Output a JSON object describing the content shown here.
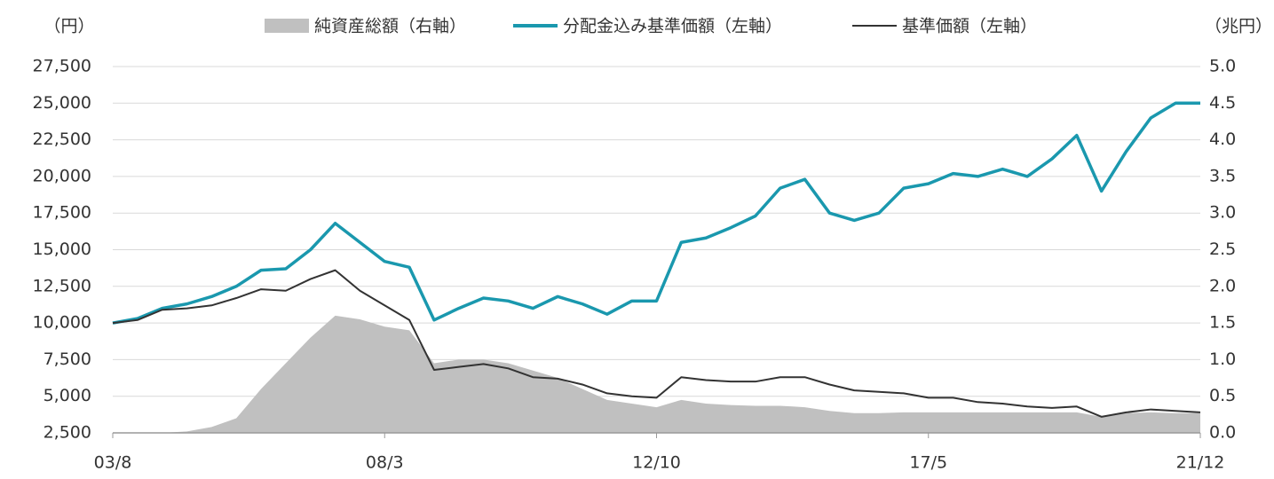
{
  "chart_data": {
    "type": "line",
    "y_unit": "（円）",
    "y2_unit": "（兆円）",
    "categories": [
      "03/8",
      null,
      null,
      null,
      null,
      null,
      null,
      null,
      null,
      null,
      null,
      "08/3",
      null,
      null,
      null,
      null,
      null,
      null,
      null,
      null,
      null,
      null,
      "12/10",
      null,
      null,
      null,
      null,
      null,
      null,
      null,
      null,
      null,
      null,
      "17/5",
      null,
      null,
      null,
      null,
      null,
      null,
      null,
      null,
      null,
      null,
      "21/12"
    ],
    "series": [
      {
        "name": "純資産総額（右軸）",
        "type": "area",
        "axis": "y2",
        "color": "#c0c0c0",
        "values": [
          0,
          0,
          0,
          0.02,
          0.08,
          0.2,
          0.6,
          0.95,
          1.3,
          1.6,
          1.55,
          1.45,
          1.4,
          0.95,
          1.0,
          1.0,
          0.95,
          0.85,
          0.75,
          0.6,
          0.45,
          0.4,
          0.35,
          0.45,
          0.4,
          0.38,
          0.37,
          0.37,
          0.35,
          0.3,
          0.27,
          0.27,
          0.28,
          0.28,
          0.28,
          0.28,
          0.28,
          0.28,
          0.28,
          0.28,
          0.22,
          0.27,
          0.28,
          0.27,
          0.27
        ]
      },
      {
        "name": "分配金込み基準価額（左軸）",
        "type": "line",
        "color": "#1a98ae",
        "values": [
          10000,
          10300,
          11000,
          11300,
          11800,
          12500,
          13600,
          13700,
          15000,
          16800,
          15500,
          14200,
          13800,
          10200,
          11000,
          11700,
          11500,
          11000,
          11800,
          11300,
          10600,
          11500,
          11500,
          15500,
          15800,
          16500,
          17300,
          19200,
          19800,
          17500,
          17000,
          17500,
          19200,
          19500,
          20200,
          20000,
          20500,
          20000,
          21200,
          22800,
          19000,
          21700,
          24000,
          25000,
          25000
        ]
      },
      {
        "name": "基準価額（左軸）",
        "type": "line",
        "color": "#333333",
        "values": [
          10000,
          10200,
          10900,
          11000,
          11200,
          11700,
          12300,
          12200,
          13000,
          13600,
          12200,
          11200,
          10200,
          6800,
          7000,
          7200,
          6900,
          6300,
          6200,
          5800,
          5200,
          5000,
          4900,
          6300,
          6100,
          6000,
          6000,
          6300,
          6300,
          5800,
          5400,
          5300,
          5200,
          4900,
          4900,
          4600,
          4500,
          4300,
          4200,
          4300,
          3600,
          3900,
          4100,
          4000,
          3900
        ]
      }
    ],
    "ylim": [
      2500,
      27500
    ],
    "yticks": [
      {
        "value": 2500,
        "label": "2,500"
      },
      {
        "value": 5000,
        "label": "5,000"
      },
      {
        "value": 7500,
        "label": "7,500"
      },
      {
        "value": 10000,
        "label": "10,000"
      },
      {
        "value": 12500,
        "label": "12,500"
      },
      {
        "value": 15000,
        "label": "15,000"
      },
      {
        "value": 17500,
        "label": "17,500"
      },
      {
        "value": 20000,
        "label": "20,000"
      },
      {
        "value": 22500,
        "label": "22,500"
      },
      {
        "value": 25000,
        "label": "25,000"
      },
      {
        "value": 27500,
        "label": "27,500"
      }
    ],
    "y2lim": [
      0,
      5
    ],
    "y2ticks": [
      {
        "value": 0,
        "label": "0.0"
      },
      0.5,
      {
        "value": 1,
        "label": "1.0"
      },
      1.5,
      {
        "value": 2,
        "label": "2.0"
      },
      2.5,
      {
        "value": 3,
        "label": "3.0"
      },
      3.5,
      {
        "value": 4,
        "label": "4.0"
      },
      4.5,
      {
        "value": 5,
        "label": "5.0"
      }
    ],
    "grid": true
  }
}
